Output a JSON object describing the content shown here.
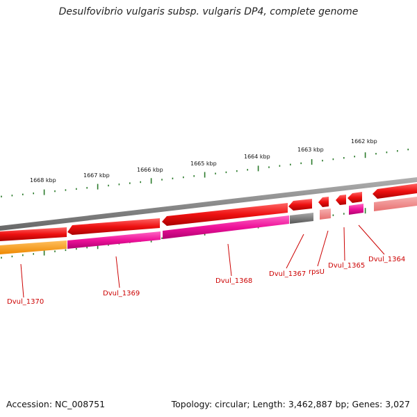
{
  "title": "Desulfovibrio vulgaris subsp. vulgaris DP4, complete genome",
  "footer": {
    "accession": "Accession: NC_008751",
    "summary": "Topology: circular; Length: 3,462,887 bp; Genes: 3,027"
  },
  "colors": {
    "backbone": "#8a8a8a",
    "cds_red": "#ee1111",
    "cds_red_light": "#f08888",
    "magenta": "#ee1199",
    "orange": "#ff9900",
    "grey_feature": "#777777",
    "ticks": "#2a7a2a",
    "label": "#cc0000"
  },
  "scale": {
    "labels": [
      "1668 kbp",
      "1667 kbp",
      "1666 kbp",
      "1665 kbp",
      "1664 kbp",
      "1663 kbp",
      "1662 kbp"
    ]
  },
  "genes": [
    {
      "name": "Dvul_1370"
    },
    {
      "name": "Dvul_1369"
    },
    {
      "name": "Dvul_1368"
    },
    {
      "name": "Dvul_1367"
    },
    {
      "name": "rpsU"
    },
    {
      "name": "Dvul_1365"
    },
    {
      "name": "Dvul_1364"
    }
  ]
}
